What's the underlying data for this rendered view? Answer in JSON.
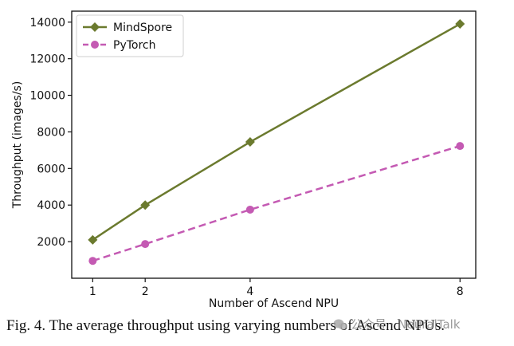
{
  "chart_data": {
    "type": "line",
    "x": [
      1,
      2,
      4,
      8
    ],
    "x_ticks": [
      "1",
      "2",
      "4",
      "8"
    ],
    "xlabel": "Number of Ascend NPU",
    "ylabel": "Throughput (images/s)",
    "y_ticks": [
      "2000",
      "4000",
      "6000",
      "8000",
      "10000",
      "12000",
      "14000"
    ],
    "xlim": [
      0.6,
      8.3
    ],
    "ylim": [
      0,
      14600
    ],
    "grid": false,
    "legend_position": "top-left",
    "series": [
      {
        "name": "MindSpore",
        "values": [
          2100,
          4000,
          7450,
          13900
        ],
        "color": "#6b7a2e",
        "marker": "diamond",
        "style": "solid"
      },
      {
        "name": "PyTorch",
        "values": [
          950,
          1870,
          3750,
          7230
        ],
        "color": "#c45ab3",
        "marker": "circle",
        "style": "dashed"
      }
    ]
  },
  "caption": "Fig. 4.   The average throughput using varying numbers of Ascend NPUs.",
  "watermark": "公众号 · NeuralTalk"
}
